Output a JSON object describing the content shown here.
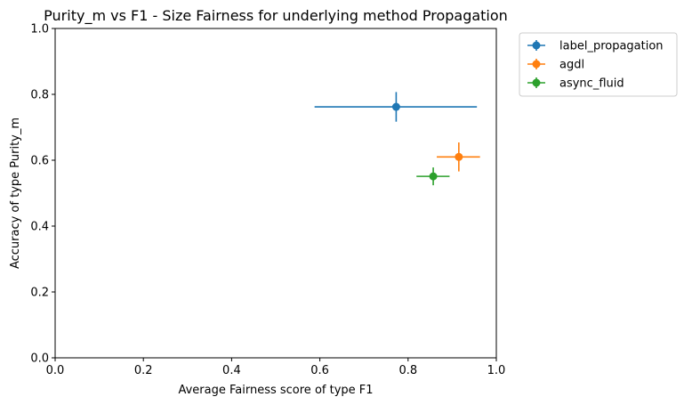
{
  "chart_data": {
    "type": "scatter",
    "title": "Purity_m vs F1 - Size Fairness for underlying method Propagation",
    "xlabel": "Average Fairness score of type F1",
    "ylabel": "Accuracy of type Purity_m",
    "xlim": [
      0.0,
      1.0
    ],
    "ylim": [
      0.0,
      1.0
    ],
    "xticks": [
      "0.0",
      "0.2",
      "0.4",
      "0.6",
      "0.8",
      "1.0"
    ],
    "yticks": [
      "0.0",
      "0.2",
      "0.4",
      "0.6",
      "0.8",
      "1.0"
    ],
    "grid": false,
    "legend_position": "outside top-right",
    "series": [
      {
        "name": "label_propagation",
        "color": "#1f77b4",
        "x": 0.773,
        "y": 0.762,
        "xerr": [
          0.185,
          0.183
        ],
        "yerr": [
          0.045,
          0.045
        ]
      },
      {
        "name": "agdl",
        "color": "#ff7f0e",
        "x": 0.915,
        "y": 0.61,
        "xerr": [
          0.05,
          0.048
        ],
        "yerr": [
          0.044,
          0.044
        ]
      },
      {
        "name": "async_fluid",
        "color": "#2ca02c",
        "x": 0.857,
        "y": 0.551,
        "xerr": [
          0.038,
          0.037
        ],
        "yerr": [
          0.027,
          0.027
        ]
      }
    ]
  }
}
